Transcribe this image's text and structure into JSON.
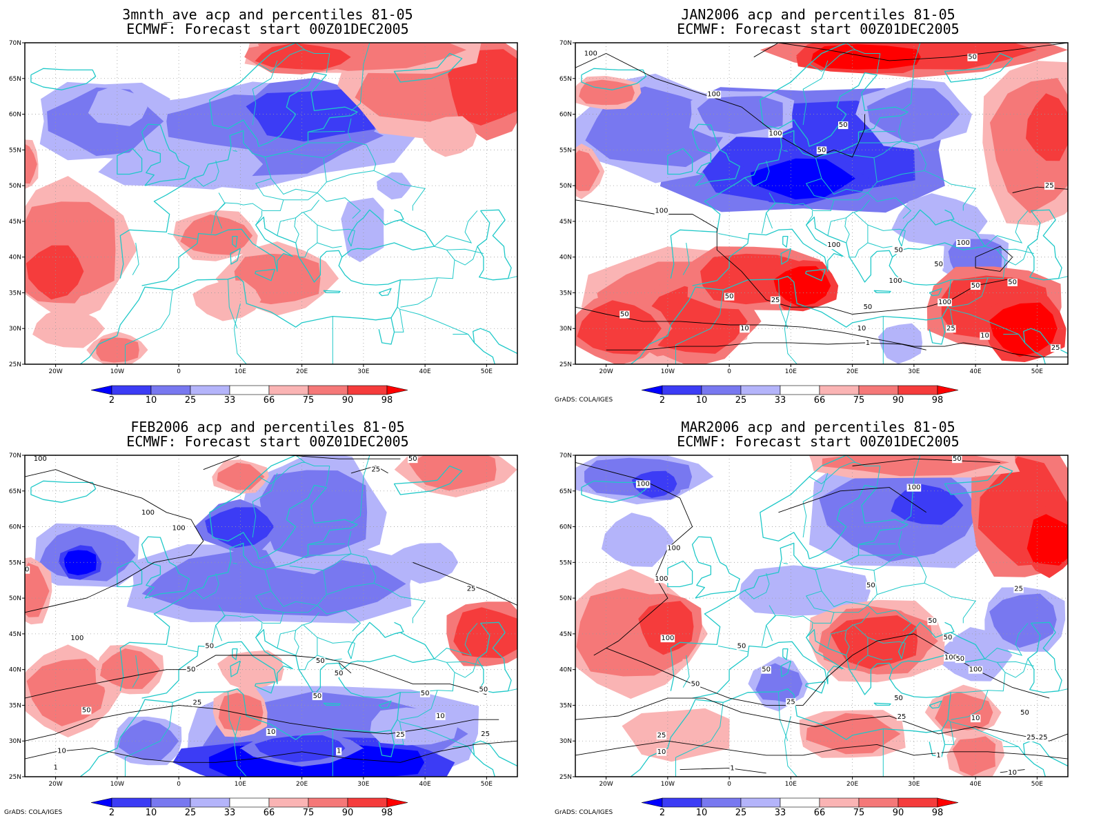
{
  "credit_text": "GrADS: COLA/IGES",
  "colorbar": {
    "labels": [
      "2",
      "10",
      "25",
      "33",
      "66",
      "75",
      "90",
      "98"
    ],
    "colors": [
      "#0000ff",
      "#3c3cf5",
      "#7878f0",
      "#b4b4fa",
      "#ffffff",
      "#fab4b4",
      "#f57878",
      "#f53c3c",
      "#ff0000"
    ]
  },
  "axes": {
    "lon_labels": [
      "20W",
      "10W",
      "0",
      "10E",
      "20E",
      "30E",
      "40E",
      "50E"
    ],
    "lat_labels": [
      "70N",
      "65N",
      "60N",
      "55N",
      "50N",
      "45N",
      "40N",
      "35N",
      "30N",
      "25N"
    ],
    "lon_range": [
      -25,
      55
    ],
    "lat_range": [
      25,
      70
    ]
  },
  "panels": [
    {
      "title1": "3mnth_ave acp and percentiles 81-05",
      "title2": "ECMWF: Forecast start 00Z01DEC2005",
      "show_credit": false,
      "contour_labels": []
    },
    {
      "title1": "JAN2006 acp and percentiles 81-05",
      "title2": "ECMWF: Forecast start 00Z01DEC2005",
      "show_credit": true,
      "contour_labels": [
        {
          "text": "100",
          "lon": -22.5,
          "lat": 68.5
        },
        {
          "text": "100",
          "lon": -2.5,
          "lat": 62.8
        },
        {
          "text": "50",
          "lon": 39.5,
          "lat": 68
        },
        {
          "text": "50",
          "lon": 18.5,
          "lat": 58.5
        },
        {
          "text": "100",
          "lon": 7.5,
          "lat": 57.3
        },
        {
          "text": "50",
          "lon": 15,
          "lat": 55
        },
        {
          "text": "25",
          "lon": 52,
          "lat": 50
        },
        {
          "text": "100",
          "lon": -11,
          "lat": 46.5
        },
        {
          "text": "100",
          "lon": 17,
          "lat": 41.7
        },
        {
          "text": "50",
          "lon": 27.5,
          "lat": 41
        },
        {
          "text": "100",
          "lon": 38,
          "lat": 42
        },
        {
          "text": "50",
          "lon": 34,
          "lat": 39
        },
        {
          "text": "100",
          "lon": 27,
          "lat": 36.7
        },
        {
          "text": "50",
          "lon": 40,
          "lat": 36
        },
        {
          "text": "50",
          "lon": 46,
          "lat": 36.5
        },
        {
          "text": "50",
          "lon": 0,
          "lat": 34.5
        },
        {
          "text": "25",
          "lon": 7.5,
          "lat": 34
        },
        {
          "text": "100",
          "lon": 35,
          "lat": 33.7
        },
        {
          "text": "50",
          "lon": -17,
          "lat": 32
        },
        {
          "text": "50",
          "lon": 22.5,
          "lat": 33
        },
        {
          "text": "10",
          "lon": 2.5,
          "lat": 30
        },
        {
          "text": "10",
          "lon": 21.5,
          "lat": 30
        },
        {
          "text": "25",
          "lon": 36,
          "lat": 30
        },
        {
          "text": "10",
          "lon": 41.5,
          "lat": 29
        },
        {
          "text": "1",
          "lon": 22.5,
          "lat": 28
        },
        {
          "text": "25",
          "lon": 53,
          "lat": 27.3
        }
      ]
    },
    {
      "title1": "FEB2006 acp and percentiles 81-05",
      "title2": "ECMWF: Forecast start 00Z01DEC2005",
      "show_credit": true,
      "contour_labels": [
        {
          "text": "100",
          "lon": -22.5,
          "lat": 69.5
        },
        {
          "text": "50",
          "lon": 38,
          "lat": 69.5
        },
        {
          "text": "25",
          "lon": 32,
          "lat": 68
        },
        {
          "text": "100",
          "lon": -5,
          "lat": 62
        },
        {
          "text": "100",
          "lon": 0,
          "lat": 59.8
        },
        {
          "text": "50",
          "lon": -25,
          "lat": 54
        },
        {
          "text": "25",
          "lon": 47.5,
          "lat": 51.3
        },
        {
          "text": "100",
          "lon": -16.5,
          "lat": 44.4
        },
        {
          "text": "50",
          "lon": 5,
          "lat": 43.3
        },
        {
          "text": "50",
          "lon": 23,
          "lat": 41.2
        },
        {
          "text": "50",
          "lon": 2,
          "lat": 40
        },
        {
          "text": "50",
          "lon": 26,
          "lat": 39.5
        },
        {
          "text": "50",
          "lon": 49.5,
          "lat": 37.2
        },
        {
          "text": "50",
          "lon": 40,
          "lat": 36.7
        },
        {
          "text": "50",
          "lon": 22.5,
          "lat": 36.3
        },
        {
          "text": "25",
          "lon": 3,
          "lat": 35.4
        },
        {
          "text": "50",
          "lon": -15,
          "lat": 34.3
        },
        {
          "text": "10",
          "lon": 42.5,
          "lat": 33.5
        },
        {
          "text": "10",
          "lon": 15,
          "lat": 31.3
        },
        {
          "text": "25",
          "lon": 36,
          "lat": 30.9
        },
        {
          "text": "25",
          "lon": 49.8,
          "lat": 31
        },
        {
          "text": "1",
          "lon": 26,
          "lat": 28.6
        },
        {
          "text": "10",
          "lon": -19,
          "lat": 28.6
        },
        {
          "text": "1",
          "lon": -20,
          "lat": 26.3
        }
      ]
    },
    {
      "title1": "MAR2006 acp and percentiles 81-05",
      "title2": "ECMWF: Forecast start 00Z01DEC2005",
      "show_credit": true,
      "contour_labels": [
        {
          "text": "50",
          "lon": 37,
          "lat": 69.5
        },
        {
          "text": "100",
          "lon": -14,
          "lat": 66
        },
        {
          "text": "100",
          "lon": 30,
          "lat": 65.5
        },
        {
          "text": "100",
          "lon": -9,
          "lat": 57
        },
        {
          "text": "100",
          "lon": -11,
          "lat": 52.7
        },
        {
          "text": "50",
          "lon": 23,
          "lat": 51.8
        },
        {
          "text": "25",
          "lon": 47,
          "lat": 51.3
        },
        {
          "text": "50",
          "lon": 33,
          "lat": 46.8
        },
        {
          "text": "100",
          "lon": -10,
          "lat": 44.4
        },
        {
          "text": "50",
          "lon": 35.5,
          "lat": 44.5
        },
        {
          "text": "50",
          "lon": 2,
          "lat": 43.3
        },
        {
          "text": "100",
          "lon": 36,
          "lat": 41.7
        },
        {
          "text": "50",
          "lon": 37.5,
          "lat": 41.5
        },
        {
          "text": "50",
          "lon": 6,
          "lat": 40
        },
        {
          "text": "100",
          "lon": 40,
          "lat": 40
        },
        {
          "text": "50",
          "lon": -5.5,
          "lat": 38
        },
        {
          "text": "25",
          "lon": 10,
          "lat": 35.5
        },
        {
          "text": "50",
          "lon": 27.5,
          "lat": 36
        },
        {
          "text": "50",
          "lon": 48,
          "lat": 34
        },
        {
          "text": "25",
          "lon": 28,
          "lat": 33.4
        },
        {
          "text": "10",
          "lon": 40,
          "lat": 33.2
        },
        {
          "text": "25",
          "lon": -11,
          "lat": 30.8
        },
        {
          "text": "10",
          "lon": -11,
          "lat": 28.5
        },
        {
          "text": "25",
          "lon": 49,
          "lat": 30.5
        },
        {
          "text": "25",
          "lon": 51,
          "lat": 30.5
        },
        {
          "text": "1",
          "lon": 34,
          "lat": 28
        },
        {
          "text": "1",
          "lon": 0.5,
          "lat": 26.2
        },
        {
          "text": "10",
          "lon": 46,
          "lat": 25.6
        }
      ]
    }
  ]
}
